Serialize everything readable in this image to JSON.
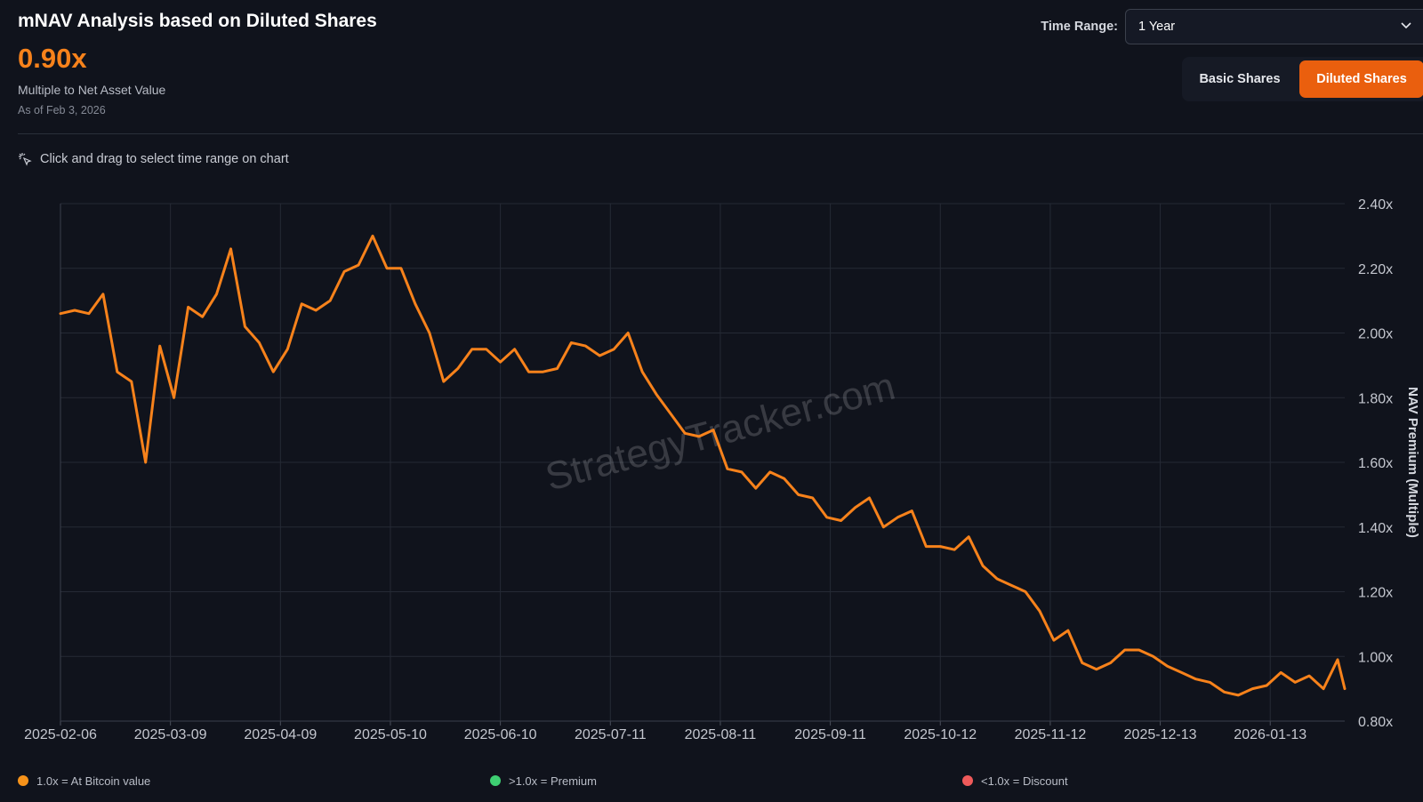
{
  "header": {
    "title": "mNAV Analysis based on Diluted Shares",
    "value": "0.90x",
    "subtitle": "Multiple to Net Asset Value",
    "as_of": "As of Feb 3, 2026"
  },
  "controls": {
    "time_range_label": "Time Range:",
    "time_range_value": "1 Year",
    "share_buttons": [
      "Basic Shares",
      "Diluted Shares"
    ],
    "active_button": 1
  },
  "hint": "Click and drag to select time range on chart",
  "chart_data": {
    "type": "line",
    "y_label": "NAV Premium (Multiple)",
    "watermark": "StrategyTracker.com",
    "color": "#f7821b",
    "grid": true,
    "x": [
      "2025-02-06",
      "2025-02-10",
      "2025-02-14",
      "2025-02-18",
      "2025-02-22",
      "2025-02-26",
      "2025-03-02",
      "2025-03-06",
      "2025-03-10",
      "2025-03-14",
      "2025-03-18",
      "2025-03-22",
      "2025-03-26",
      "2025-03-30",
      "2025-04-03",
      "2025-04-07",
      "2025-04-11",
      "2025-04-15",
      "2025-04-19",
      "2025-04-23",
      "2025-04-27",
      "2025-05-01",
      "2025-05-05",
      "2025-05-09",
      "2025-05-13",
      "2025-05-17",
      "2025-05-21",
      "2025-05-25",
      "2025-05-29",
      "2025-06-02",
      "2025-06-06",
      "2025-06-10",
      "2025-06-14",
      "2025-06-18",
      "2025-06-22",
      "2025-06-26",
      "2025-06-30",
      "2025-07-04",
      "2025-07-08",
      "2025-07-12",
      "2025-07-16",
      "2025-07-20",
      "2025-07-24",
      "2025-07-28",
      "2025-08-01",
      "2025-08-05",
      "2025-08-09",
      "2025-08-13",
      "2025-08-17",
      "2025-08-21",
      "2025-08-25",
      "2025-08-29",
      "2025-09-02",
      "2025-09-06",
      "2025-09-10",
      "2025-09-14",
      "2025-09-18",
      "2025-09-22",
      "2025-09-26",
      "2025-09-30",
      "2025-10-04",
      "2025-10-08",
      "2025-10-12",
      "2025-10-16",
      "2025-10-20",
      "2025-10-24",
      "2025-10-28",
      "2025-11-01",
      "2025-11-05",
      "2025-11-09",
      "2025-11-13",
      "2025-11-17",
      "2025-11-21",
      "2025-11-25",
      "2025-11-29",
      "2025-12-03",
      "2025-12-07",
      "2025-12-11",
      "2025-12-15",
      "2025-12-19",
      "2025-12-23",
      "2025-12-27",
      "2025-12-31",
      "2026-01-04",
      "2026-01-08",
      "2026-01-12",
      "2026-01-16",
      "2026-01-20",
      "2026-01-24",
      "2026-01-28",
      "2026-02-01",
      "2026-02-03"
    ],
    "values": [
      2.06,
      2.07,
      2.06,
      2.12,
      1.88,
      1.85,
      1.6,
      1.96,
      1.8,
      2.08,
      2.05,
      2.12,
      2.26,
      2.02,
      1.97,
      1.88,
      1.95,
      2.09,
      2.07,
      2.1,
      2.19,
      2.21,
      2.3,
      2.2,
      2.2,
      2.09,
      2.0,
      1.85,
      1.89,
      1.95,
      1.95,
      1.91,
      1.95,
      1.88,
      1.88,
      1.89,
      1.97,
      1.96,
      1.93,
      1.95,
      2.0,
      1.88,
      1.81,
      1.75,
      1.69,
      1.68,
      1.7,
      1.58,
      1.57,
      1.52,
      1.57,
      1.55,
      1.5,
      1.49,
      1.43,
      1.42,
      1.46,
      1.49,
      1.4,
      1.43,
      1.45,
      1.34,
      1.34,
      1.33,
      1.37,
      1.28,
      1.24,
      1.22,
      1.2,
      1.14,
      1.05,
      1.08,
      0.98,
      0.96,
      0.98,
      1.02,
      1.02,
      1.0,
      0.97,
      0.95,
      0.93,
      0.92,
      0.89,
      0.88,
      0.9,
      0.91,
      0.95,
      0.92,
      0.94,
      0.9,
      0.99,
      0.9
    ],
    "xlim": [
      "2025-02-06",
      "2026-02-03"
    ],
    "xticks": [
      "2025-02-06",
      "2025-03-09",
      "2025-04-09",
      "2025-05-10",
      "2025-06-10",
      "2025-07-11",
      "2025-08-11",
      "2025-09-11",
      "2025-10-12",
      "2025-11-12",
      "2025-12-13",
      "2026-01-13"
    ],
    "ylim": [
      0.8,
      2.4
    ],
    "yticks": [
      {
        "value": 0.8,
        "label": "0.80x"
      },
      {
        "value": 1.0,
        "label": "1.00x"
      },
      {
        "value": 1.2,
        "label": "1.20x"
      },
      {
        "value": 1.4,
        "label": "1.40x"
      },
      {
        "value": 1.6,
        "label": "1.60x"
      },
      {
        "value": 1.8,
        "label": "1.80x"
      },
      {
        "value": 2.0,
        "label": "2.00x"
      },
      {
        "value": 2.2,
        "label": "2.20x"
      },
      {
        "value": 2.4,
        "label": "2.40x"
      }
    ]
  },
  "legend_notes": [
    {
      "label": "1.0x = At Bitcoin value",
      "color": "#f7931a"
    },
    {
      "label": ">1.0x = Premium",
      "color": "#3ecf72"
    },
    {
      "label": "<1.0x = Discount",
      "color": "#ef5a5a"
    }
  ]
}
